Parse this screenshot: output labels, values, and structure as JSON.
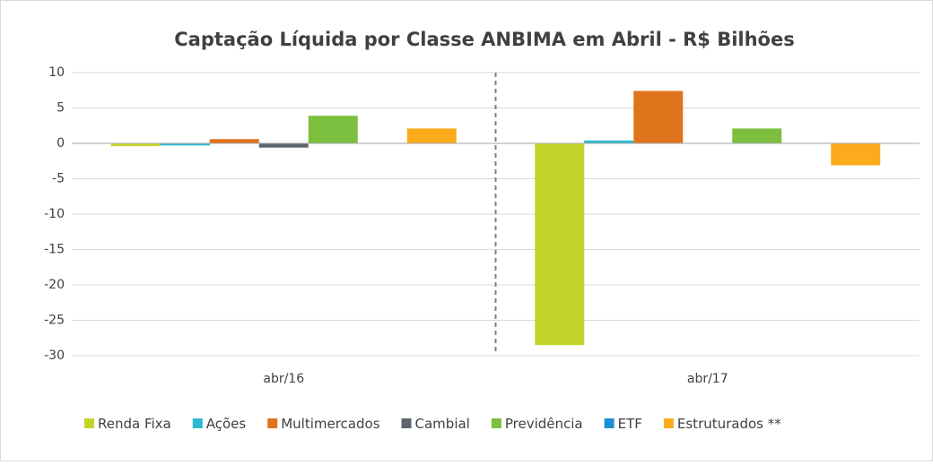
{
  "chart_data": {
    "type": "bar",
    "title": "Captação Líquida por Classe ANBIMA em Abril - R$ Bilhões",
    "categories": [
      "abr/16",
      "abr/17"
    ],
    "series": [
      {
        "name": "Renda Fixa",
        "color": "#c5d42a",
        "values": [
          -0.4,
          -28.5
        ]
      },
      {
        "name": "Ações",
        "color": "#2bb9cf",
        "values": [
          -0.3,
          0.4
        ]
      },
      {
        "name": "Multimercados",
        "color": "#e0741d",
        "values": [
          0.6,
          7.4
        ]
      },
      {
        "name": "Cambial",
        "color": "#5d6470",
        "values": [
          -0.6,
          0
        ]
      },
      {
        "name": "Previdência",
        "color": "#7cbf3f",
        "values": [
          3.9,
          2.1
        ]
      },
      {
        "name": "ETF",
        "color": "#1f8ed6",
        "values": [
          0,
          0
        ]
      },
      {
        "name": "Estruturados **",
        "color": "#fbab1b",
        "values": [
          2.1,
          -3.1
        ]
      }
    ],
    "ylim": [
      -30,
      10
    ],
    "yticks": [
      -30,
      -25,
      -20,
      -15,
      -10,
      -5,
      0,
      5,
      10
    ],
    "grid": true,
    "legend": "bottom"
  }
}
